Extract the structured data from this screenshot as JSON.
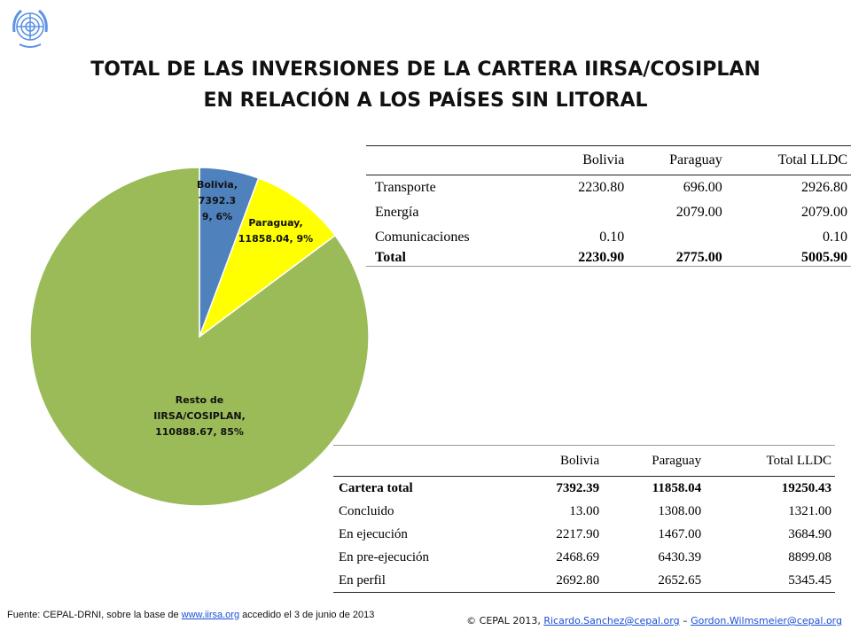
{
  "header": {
    "title_line1": "TOTAL DE LAS INVERSIONES DE LA CARTERA IIRSA/COSIPLAN",
    "title_line2": "EN RELACIÓN A LOS PAÍSES SIN LITORAL"
  },
  "colors": {
    "bolivia": "#4f81bd",
    "paraguay": "#ffff00",
    "resto": "#9bbb59",
    "logo": "#5b92e5"
  },
  "chart_data": {
    "type": "pie",
    "slices": [
      {
        "name": "Bolivia",
        "value": 7392.39,
        "percent": 6,
        "color": "#4f81bd",
        "label_lines": [
          "Bolivia,",
          "7392.3",
          "9, 6%"
        ]
      },
      {
        "name": "Paraguay",
        "value": 11858.04,
        "percent": 9,
        "color": "#ffff00",
        "label_lines": [
          "Paraguay,",
          "11858.04, 9%"
        ]
      },
      {
        "name": "Resto de IIRSA/COSIPLAN",
        "value": 110888.67,
        "percent": 85,
        "color": "#9bbb59",
        "label_lines": [
          "Resto de",
          "IIRSA/COSIPLAN,",
          "110888.67, 85%"
        ]
      }
    ]
  },
  "table1": {
    "headers": [
      "",
      "Bolivia",
      "Paraguay",
      "Total LLDC"
    ],
    "rows": [
      [
        "Transporte",
        "2230.80",
        "696.00",
        "2926.80"
      ],
      [
        "Energía",
        "",
        "2079.00",
        "2079.00"
      ],
      [
        "Comunicaciones",
        "0.10",
        "",
        "0.10"
      ]
    ],
    "total": [
      "Total",
      "2230.90",
      "2775.00",
      "5005.90"
    ]
  },
  "table2": {
    "headers": [
      "",
      "Bolivia",
      "Paraguay",
      "Total LLDC"
    ],
    "rows": [
      [
        "Cartera total",
        "7392.39",
        "11858.04",
        "19250.43"
      ],
      [
        "Concluido",
        "13.00",
        "1308.00",
        "1321.00"
      ],
      [
        "En ejecución",
        "2217.90",
        "1467.00",
        "3684.90"
      ],
      [
        "En pre-ejecución",
        "2468.69",
        "6430.39",
        "8899.08"
      ],
      [
        "En perfil",
        "2692.80",
        "2652.65",
        "5345.45"
      ]
    ]
  },
  "footer": {
    "source_prefix": "Fuente: CEPAL-DRNI, sobre la base de ",
    "source_link": "www.iirsa.org",
    "source_suffix": " accedido el 3 de junio de 2013",
    "credits_prefix": "© CEPAL 2013, ",
    "email1": "Ricardo.Sanchez@cepal.org",
    "separator": " – ",
    "email2": "Gordon.Wilmsmeier@cepal.org"
  }
}
